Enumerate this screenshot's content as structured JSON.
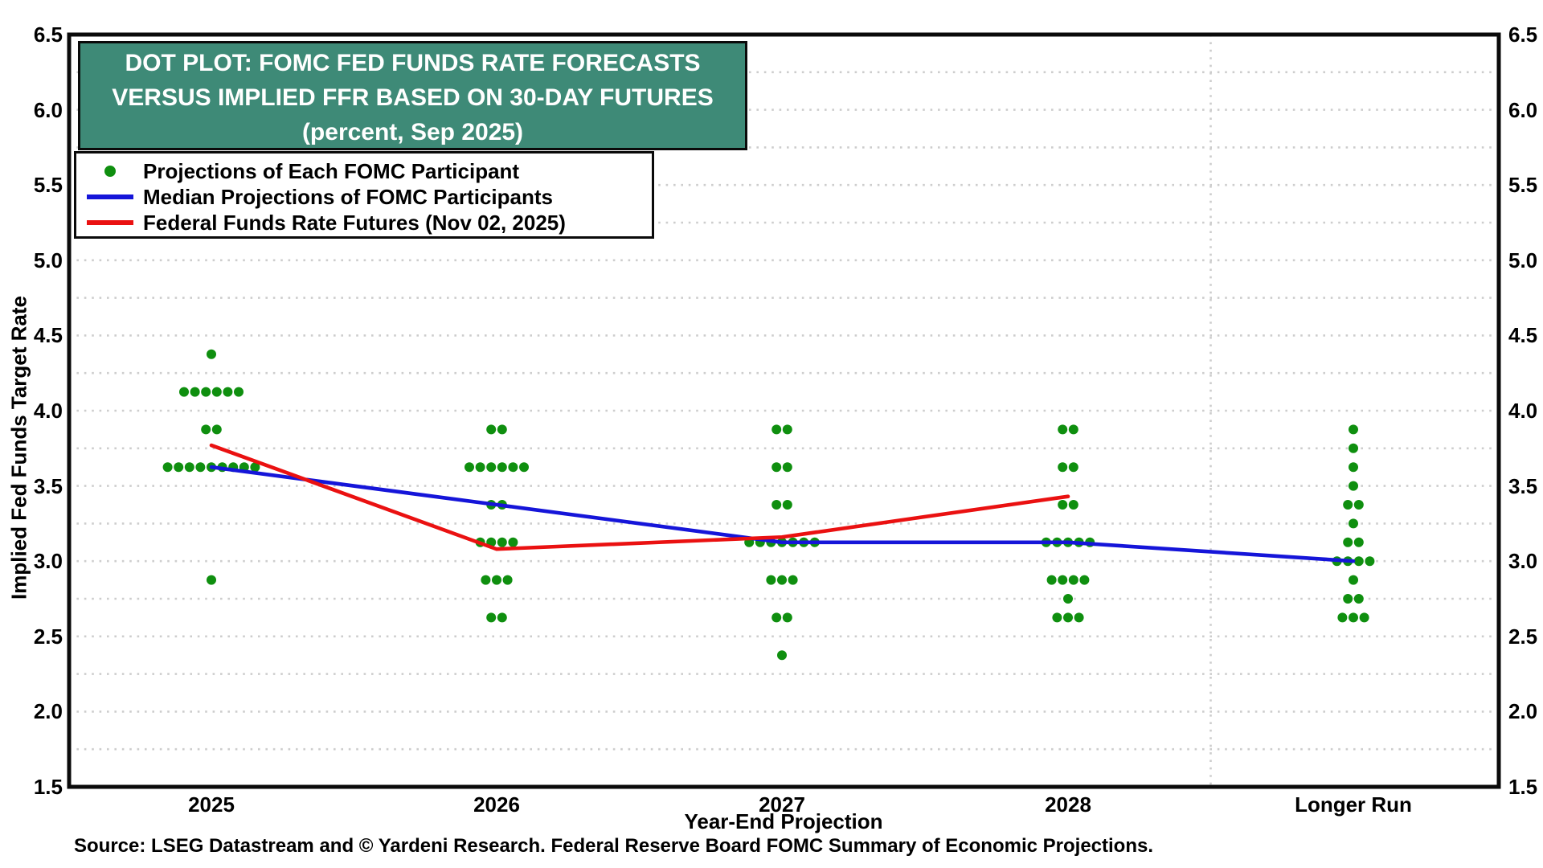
{
  "header": {
    "lines": [
      "DOT PLOT: FOMC FED FUNDS RATE FORECASTS",
      "VERSUS IMPLIED FFR BASED ON 30-DAY FUTURES",
      "(percent, Sep 2025)"
    ]
  },
  "legend": {
    "items": [
      {
        "marker": "dot",
        "color": "#0f8f0f",
        "label": "Projections of Each FOMC Participant"
      },
      {
        "marker": "line",
        "color": "#1515d9",
        "label": "Median Projections of FOMC Participants"
      },
      {
        "marker": "line",
        "color": "#ea1111",
        "label": "Federal Funds Rate Futures (Nov 02, 2025)"
      }
    ]
  },
  "axes": {
    "yticks": [
      "6.5",
      "6.0",
      "5.5",
      "5.0",
      "4.5",
      "4.0",
      "3.5",
      "3.0",
      "2.5",
      "2.0",
      "1.5"
    ],
    "xticks": [
      "2025",
      "2026",
      "2027",
      "2028",
      "Longer Run"
    ]
  },
  "source": "Source: LSEG Datastream and © Yardeni Research. Federal Reserve Board FOMC Summary of Economic Projections.",
  "colors": {
    "title_bg": "#3e8a77",
    "dot_green": "#0f8f0f",
    "median_blue": "#1515d9",
    "futures_red": "#ea1111",
    "grid": "#cdcdcd",
    "frame": "#0a0a0a"
  },
  "chart_data": {
    "type": "scatter",
    "title": "DOT PLOT: FOMC FED FUNDS RATE FORECASTS VERSUS IMPLIED FFR BASED ON 30-DAY FUTURES (percent, Sep 2025)",
    "xlabel": "Year-End Projection",
    "ylabel": "Implied Fed Funds Target Rate",
    "ylim": [
      1.5,
      6.5
    ],
    "ytick_step": 0.5,
    "grid_step": 0.25,
    "grid": "horizontal dotted lines every 0.25; vertical dotted separator between 2028 and Longer Run",
    "legend_position": "upper left",
    "categories": [
      "2025",
      "2026",
      "2027",
      "2028",
      "Longer Run"
    ],
    "fomc_projection_dots": [
      {
        "year": "2025",
        "dots": [
          {
            "rate": 4.375,
            "participants": 1
          },
          {
            "rate": 4.125,
            "participants": 6
          },
          {
            "rate": 3.875,
            "participants": 2
          },
          {
            "rate": 3.625,
            "participants": 9
          },
          {
            "rate": 2.875,
            "participants": 1
          }
        ]
      },
      {
        "year": "2026",
        "dots": [
          {
            "rate": 3.875,
            "participants": 2
          },
          {
            "rate": 3.625,
            "participants": 6
          },
          {
            "rate": 3.375,
            "participants": 2
          },
          {
            "rate": 3.125,
            "participants": 4
          },
          {
            "rate": 2.875,
            "participants": 3
          },
          {
            "rate": 2.625,
            "participants": 2
          }
        ]
      },
      {
        "year": "2027",
        "dots": [
          {
            "rate": 3.875,
            "participants": 2
          },
          {
            "rate": 3.625,
            "participants": 2
          },
          {
            "rate": 3.375,
            "participants": 2
          },
          {
            "rate": 3.125,
            "participants": 7
          },
          {
            "rate": 2.875,
            "participants": 3
          },
          {
            "rate": 2.625,
            "participants": 2
          },
          {
            "rate": 2.375,
            "participants": 1
          }
        ]
      },
      {
        "year": "2028",
        "dots": [
          {
            "rate": 3.875,
            "participants": 2
          },
          {
            "rate": 3.625,
            "participants": 2
          },
          {
            "rate": 3.375,
            "participants": 2
          },
          {
            "rate": 3.125,
            "participants": 5
          },
          {
            "rate": 2.875,
            "participants": 4
          },
          {
            "rate": 2.75,
            "participants": 1
          },
          {
            "rate": 2.625,
            "participants": 3
          }
        ]
      },
      {
        "year": "Longer Run",
        "dots": [
          {
            "rate": 3.875,
            "participants": 1
          },
          {
            "rate": 3.75,
            "participants": 1
          },
          {
            "rate": 3.625,
            "participants": 1
          },
          {
            "rate": 3.5,
            "participants": 1
          },
          {
            "rate": 3.375,
            "participants": 2
          },
          {
            "rate": 3.25,
            "participants": 1
          },
          {
            "rate": 3.125,
            "participants": 2
          },
          {
            "rate": 3.0,
            "participants": 4
          },
          {
            "rate": 2.875,
            "participants": 1
          },
          {
            "rate": 2.75,
            "participants": 2
          },
          {
            "rate": 2.625,
            "participants": 3
          }
        ]
      }
    ],
    "series": [
      {
        "name": "Median Projections of FOMC Participants",
        "type": "line",
        "color": "#1515d9",
        "x": [
          "2025",
          "2026",
          "2027",
          "2028",
          "Longer Run"
        ],
        "values": [
          3.625,
          3.375,
          3.125,
          3.125,
          3.0
        ]
      },
      {
        "name": "Federal Funds Rate Futures (Nov 02, 2025)",
        "type": "line",
        "color": "#ea1111",
        "x": [
          "2025",
          "2026",
          "2027",
          "2028"
        ],
        "values": [
          3.77,
          3.08,
          3.16,
          3.43
        ]
      }
    ]
  }
}
